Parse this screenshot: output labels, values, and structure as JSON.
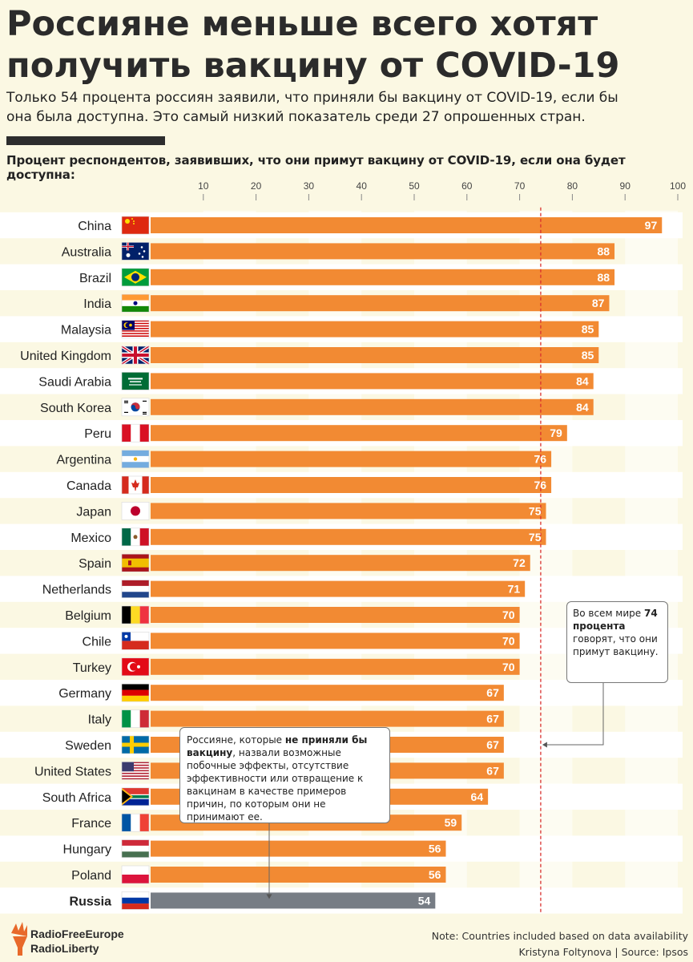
{
  "title": "Россияне меньше всего хотят получить вакцину от COVID-19",
  "subtitle": "Только 54 процента россиян заявили, что приняли бы вакцину от COVID-19, если бы она была доступна. Это самый низкий показатель среди 27 опрошенных стран.",
  "chart_label": "Процент респондентов, заявивших, что они примут вакцину от COVID-19, если она будет доступна:",
  "chart_data": {
    "type": "bar",
    "orientation": "horizontal",
    "title": "Процент респондентов, заявивших, что они примут вакцину от COVID-19, если она будет доступна:",
    "xlim": [
      0,
      100
    ],
    "ticks": [
      10,
      20,
      30,
      40,
      50,
      60,
      70,
      80,
      90,
      100
    ],
    "reference_line": 74,
    "categories": [
      "China",
      "Australia",
      "Brazil",
      "India",
      "Malaysia",
      "United Kingdom",
      "Saudi Arabia",
      "South Korea",
      "Peru",
      "Argentina",
      "Canada",
      "Japan",
      "Mexico",
      "Spain",
      "Netherlands",
      "Belgium",
      "Chile",
      "Turkey",
      "Germany",
      "Italy",
      "Sweden",
      "United States",
      "South Africa",
      "France",
      "Hungary",
      "Poland",
      "Russia"
    ],
    "values": [
      97,
      88,
      88,
      87,
      85,
      85,
      84,
      84,
      79,
      76,
      76,
      75,
      75,
      72,
      71,
      70,
      70,
      70,
      67,
      67,
      67,
      67,
      64,
      59,
      56,
      56,
      54
    ],
    "highlight": "Russia",
    "colors": {
      "bar": "#f28a33",
      "highlight_bar": "#777d85",
      "reference": "#d9302e",
      "stripe": "#ffffff"
    }
  },
  "callouts": {
    "world": {
      "pre": "Во всем мире ",
      "bold": "74 процента",
      "post": " говорят, что они примут вакцину."
    },
    "russia": {
      "pre": "Россияне, которые ",
      "bold": "не приняли бы вакцину",
      "post": ", назвали возможные побочные эффекты, отсутствие эффективности или отвращение к вакцинам в качестве примеров причин, по которым они не принимают ее."
    }
  },
  "footer": {
    "logo_line1": "RadioFreeEurope",
    "logo_line2": "RadioLiberty",
    "note": "Note: Countries included based on data availability",
    "credit": "Kristyna Foltynova | Source: Ipsos"
  }
}
